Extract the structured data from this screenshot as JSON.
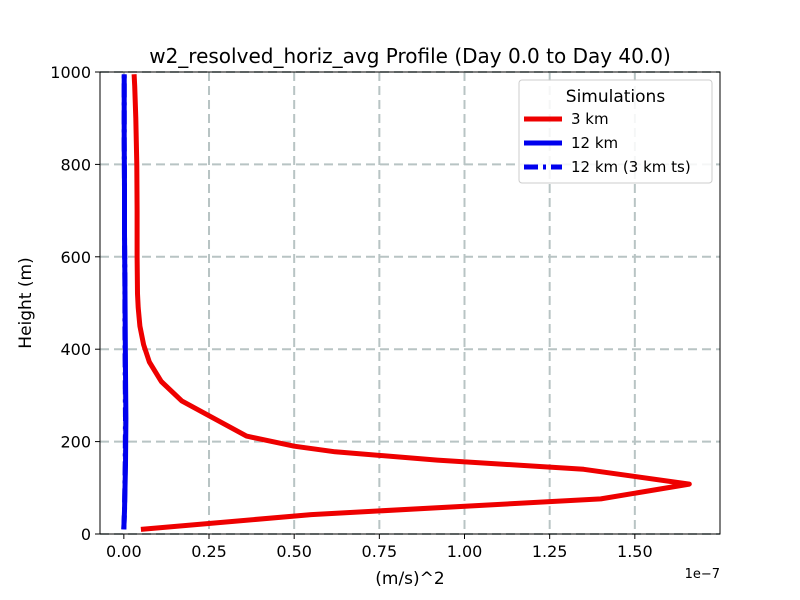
{
  "chart_data": {
    "type": "line",
    "title": "w2_resolved_horiz_avg Profile (Day 0.0 to Day 40.0)",
    "xlabel": "(m/s)^2",
    "ylabel": "Height (m)",
    "x_offset_label": "1e−7",
    "x_scale": 1e-07,
    "xlim": [
      -0.07,
      1.75
    ],
    "ylim": [
      0,
      1000
    ],
    "x_ticks": [
      0.0,
      0.25,
      0.5,
      0.75,
      1.0,
      1.25,
      1.5
    ],
    "x_tick_labels": [
      "0.00",
      "0.25",
      "0.50",
      "0.75",
      "1.00",
      "1.25",
      "1.50"
    ],
    "y_ticks": [
      0,
      200,
      400,
      600,
      800,
      1000
    ],
    "y_tick_labels": [
      "0",
      "200",
      "400",
      "600",
      "800",
      "1000"
    ],
    "grid": true,
    "legend": {
      "title": "Simulations",
      "placement": "top-right"
    },
    "series": [
      {
        "name": "3 km",
        "color": "#ee0000",
        "style": "solid",
        "points": [
          [
            0.05,
            10
          ],
          [
            0.55,
            42
          ],
          [
            1.4,
            76
          ],
          [
            1.66,
            108
          ],
          [
            1.35,
            140
          ],
          [
            0.92,
            160
          ],
          [
            0.62,
            178
          ],
          [
            0.5,
            190
          ],
          [
            0.36,
            212
          ],
          [
            0.26,
            252
          ],
          [
            0.17,
            288
          ],
          [
            0.11,
            330
          ],
          [
            0.075,
            372
          ],
          [
            0.058,
            410
          ],
          [
            0.047,
            450
          ],
          [
            0.042,
            490
          ],
          [
            0.04,
            520
          ],
          [
            0.039,
            600
          ],
          [
            0.039,
            700
          ],
          [
            0.038,
            800
          ],
          [
            0.035,
            900
          ],
          [
            0.032,
            970
          ],
          [
            0.03,
            995
          ]
        ]
      },
      {
        "name": "12 km",
        "color": "#0000ee",
        "style": "solid",
        "points": [
          [
            0.0,
            10
          ],
          [
            0.002,
            50
          ],
          [
            0.005,
            150
          ],
          [
            0.006,
            250
          ],
          [
            0.005,
            350
          ],
          [
            0.004,
            450
          ],
          [
            0.003,
            550
          ],
          [
            0.002,
            650
          ],
          [
            0.002,
            750
          ],
          [
            0.001,
            850
          ],
          [
            0.001,
            950
          ],
          [
            0.001,
            995
          ]
        ]
      },
      {
        "name": "12 km (3 km ts)",
        "color": "#0000ee",
        "style": "dashed",
        "points": [
          [
            0.0,
            10
          ],
          [
            0.002,
            50
          ],
          [
            0.004,
            150
          ],
          [
            0.005,
            250
          ],
          [
            0.004,
            350
          ],
          [
            0.003,
            450
          ],
          [
            0.003,
            550
          ],
          [
            0.002,
            650
          ],
          [
            0.002,
            750
          ],
          [
            0.001,
            850
          ],
          [
            0.001,
            950
          ],
          [
            0.001,
            995
          ]
        ]
      }
    ]
  }
}
